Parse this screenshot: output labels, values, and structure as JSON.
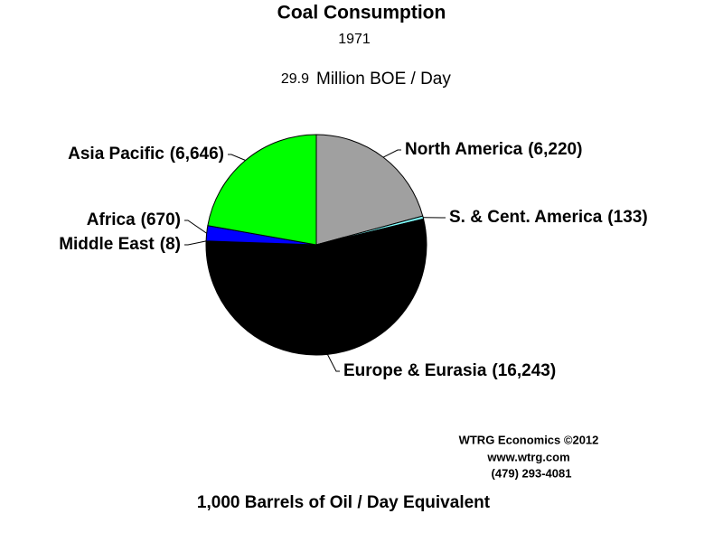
{
  "chart_data": {
    "type": "pie",
    "title": "Coal Consumption",
    "subtitle": "1971",
    "total_value_label": "29.9",
    "total_unit": "Million BOE / Day",
    "categories": [
      "North America",
      "S. & Cent. America",
      "Europe & Eurasia",
      "Middle East",
      "Africa",
      "Asia Pacific"
    ],
    "values": [
      6220,
      133,
      16243,
      8,
      670,
      6646
    ],
    "value_labels": [
      "(6,220)",
      "(133)",
      "(16,243)",
      "(8)",
      "(670)",
      "(6,646)"
    ],
    "colors": [
      "#a0a0a0",
      "#80ffff",
      "#000000",
      "#ff0000",
      "#0000ff",
      "#00ff00"
    ],
    "credit": [
      "WTRG Economics  ©2012",
      "www.wtrg.com",
      "(479) 293-4081"
    ],
    "footer": "1,000 Barrels of Oil / Day Equivalent"
  }
}
